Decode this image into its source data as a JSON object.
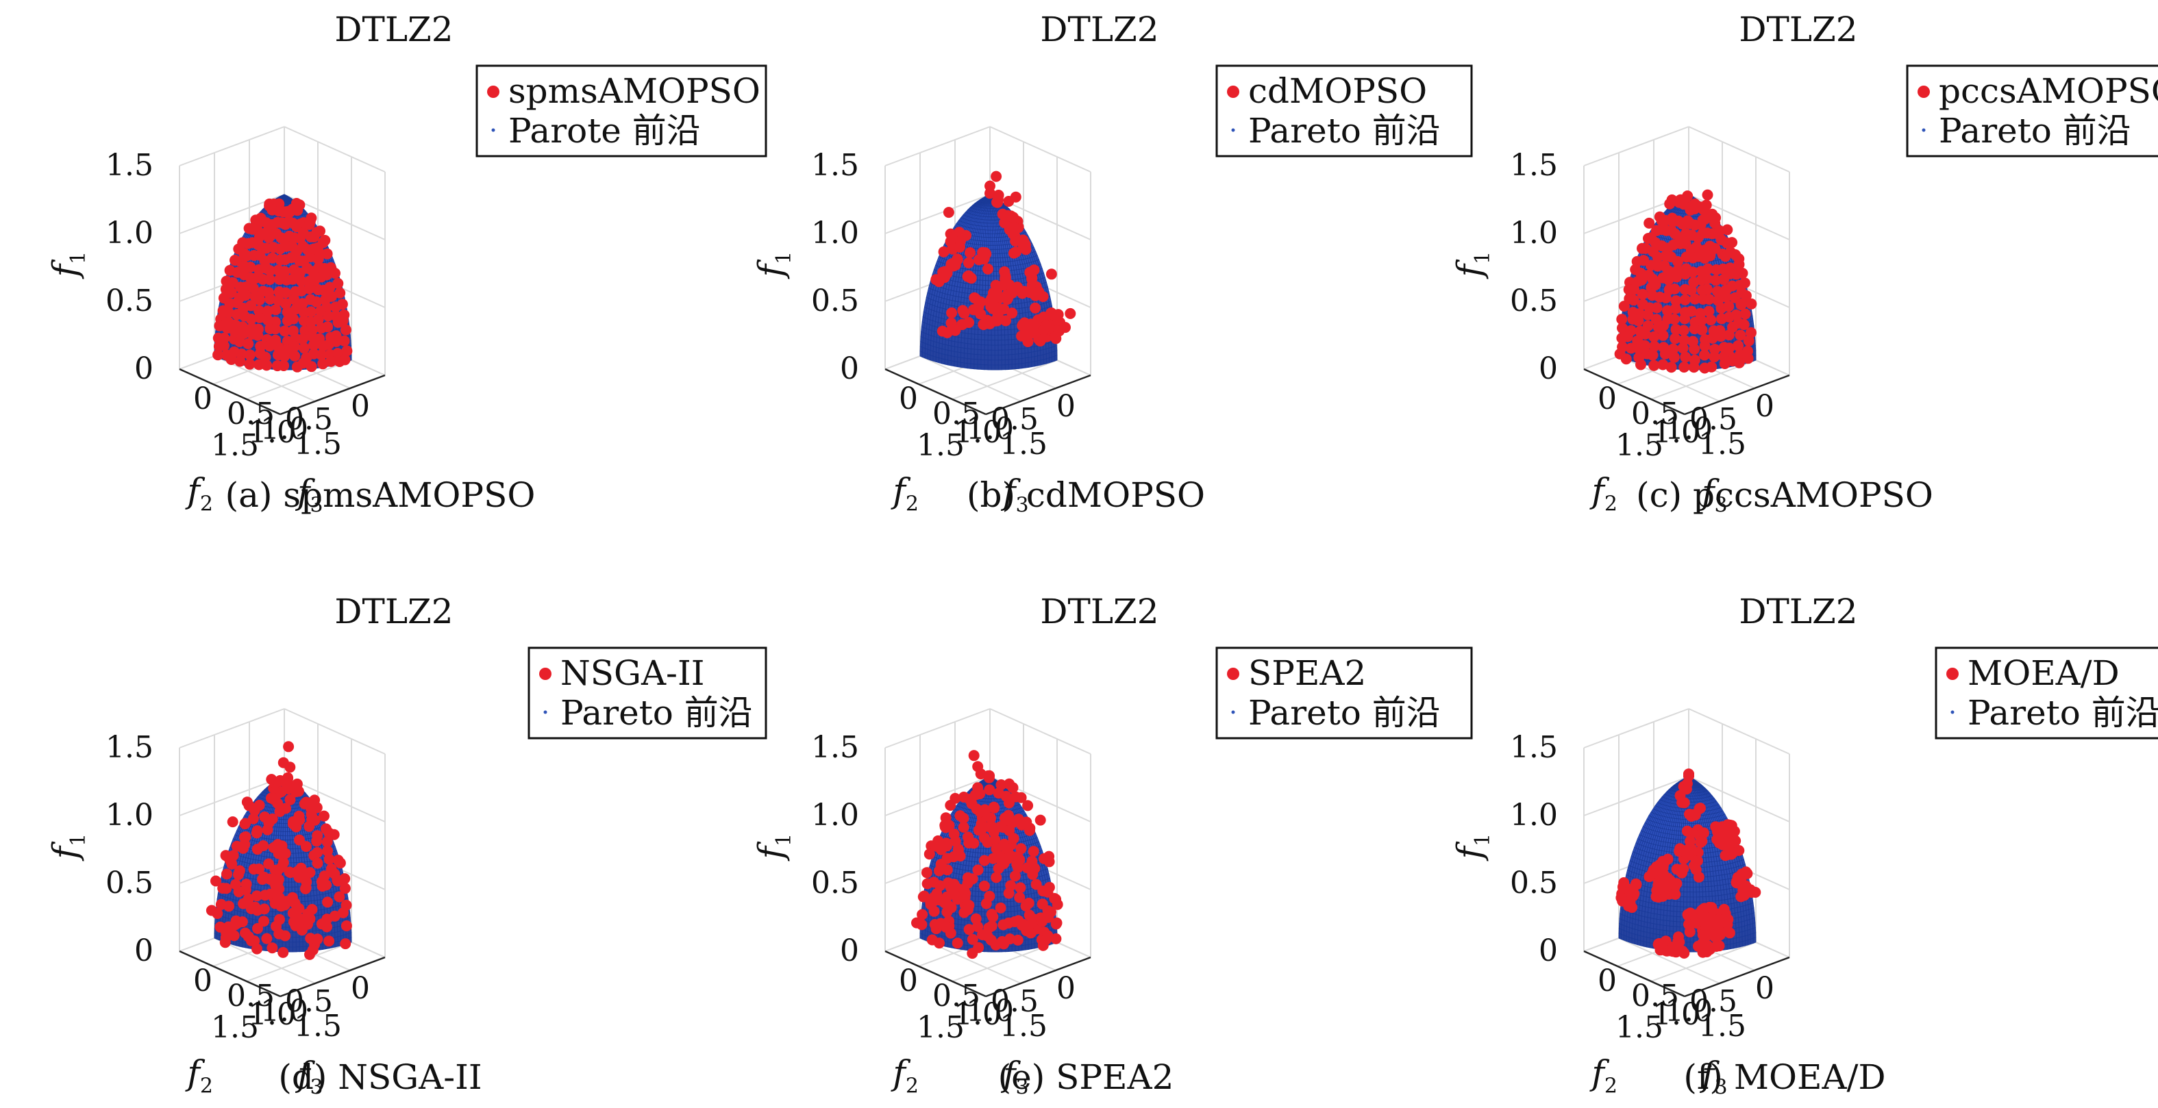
{
  "colors": {
    "front_surface": "#2f54b8",
    "front_line": "#1a3a99",
    "solution_points": "#e8202a",
    "grid": "#d9d9d9"
  },
  "chart_data": [
    {
      "type": "scatter",
      "panel": "a",
      "title": "DTLZ2",
      "caption": "(a) spmsAMOPSO",
      "xlabel": "f2",
      "ylabel": "f3",
      "zlabel": "f1",
      "xlim": [
        0,
        1.5
      ],
      "ylim": [
        0,
        1.5
      ],
      "zlim": [
        0,
        1.5
      ],
      "ticks": [
        0,
        0.5,
        1.0,
        1.5
      ],
      "tick_labels": [
        "0",
        "0.5",
        "1.0",
        "1.5"
      ],
      "grid": true,
      "legend_position": "top-right",
      "series": [
        {
          "name": "spmsAMOPSO",
          "marker": "filled-circle",
          "color": "#e8202a",
          "distribution": "uniform",
          "points": 260,
          "scatter_off_front": 0.0
        },
        {
          "name": "Parote 前沿",
          "marker": "dot",
          "color": "#2f54b8",
          "shape": "unit sphere octant f1²+f2²+f3²=1"
        }
      ]
    },
    {
      "type": "scatter",
      "panel": "b",
      "title": "DTLZ2",
      "caption": "(b) cdMOPSO",
      "xlabel": "f2",
      "ylabel": "f3",
      "zlabel": "f1",
      "xlim": [
        0,
        1.5
      ],
      "ylim": [
        0,
        1.5
      ],
      "zlim": [
        0,
        1.5
      ],
      "ticks": [
        0,
        0.5,
        1.0,
        1.5
      ],
      "tick_labels": [
        "0",
        "0.5",
        "1.0",
        "1.5"
      ],
      "grid": true,
      "legend_position": "top-right",
      "series": [
        {
          "name": "cdMOPSO",
          "marker": "filled-circle",
          "color": "#e8202a",
          "distribution": "clustered",
          "points": 210,
          "scatter_off_front": 0.08
        },
        {
          "name": "Pareto 前沿",
          "marker": "dot",
          "color": "#2f54b8",
          "shape": "unit sphere octant f1²+f2²+f3²=1"
        }
      ]
    },
    {
      "type": "scatter",
      "panel": "c",
      "title": "DTLZ2",
      "caption": "(c) pccsAMOPSO",
      "xlabel": "f2",
      "ylabel": "f3",
      "zlabel": "f1",
      "xlim": [
        0,
        1.5
      ],
      "ylim": [
        0,
        1.5
      ],
      "zlim": [
        0,
        1.5
      ],
      "ticks": [
        0,
        0.5,
        1.0,
        1.5
      ],
      "tick_labels": [
        "0",
        "0.5",
        "1.0",
        "1.5"
      ],
      "grid": true,
      "legend_position": "top-right",
      "series": [
        {
          "name": "pccsAMOPSO",
          "marker": "filled-circle",
          "color": "#e8202a",
          "distribution": "uniform",
          "points": 250,
          "scatter_off_front": 0.03
        },
        {
          "name": "Pareto 前沿",
          "marker": "dot",
          "color": "#2f54b8",
          "shape": "unit sphere octant f1²+f2²+f3²=1"
        }
      ]
    },
    {
      "type": "scatter",
      "panel": "d",
      "title": "DTLZ2",
      "caption": "(d) NSGA-II",
      "xlabel": "f2",
      "ylabel": "f3",
      "zlabel": "f1",
      "xlim": [
        0,
        1.5
      ],
      "ylim": [
        0,
        1.5
      ],
      "zlim": [
        0,
        1.5
      ],
      "ticks": [
        0,
        0.5,
        1.0,
        1.5
      ],
      "tick_labels": [
        "0",
        "0.5",
        "1.0",
        "1.5"
      ],
      "grid": true,
      "legend_position": "top-right",
      "series": [
        {
          "name": "NSGA-II",
          "marker": "filled-circle",
          "color": "#e8202a",
          "distribution": "random",
          "points": 210,
          "scatter_off_front": 0.08
        },
        {
          "name": "Pareto 前沿",
          "marker": "dot",
          "color": "#2f54b8",
          "shape": "unit sphere octant f1²+f2²+f3²=1"
        }
      ]
    },
    {
      "type": "scatter",
      "panel": "e",
      "title": "DTLZ2",
      "caption": "(e) SPEA2",
      "xlabel": "f2",
      "ylabel": "f3",
      "zlabel": "f1",
      "xlim": [
        0,
        1.5
      ],
      "ylim": [
        0,
        1.5
      ],
      "zlim": [
        0,
        1.5
      ],
      "ticks": [
        0,
        0.5,
        1.0,
        1.5
      ],
      "tick_labels": [
        "0",
        "0.5",
        "1.0",
        "1.5"
      ],
      "grid": true,
      "legend_position": "top-right",
      "series": [
        {
          "name": "SPEA2",
          "marker": "filled-circle",
          "color": "#e8202a",
          "distribution": "random",
          "points": 230,
          "scatter_off_front": 0.08
        },
        {
          "name": "Pareto 前沿",
          "marker": "dot",
          "color": "#2f54b8",
          "shape": "unit sphere octant f1²+f2²+f3²=1"
        }
      ]
    },
    {
      "type": "scatter",
      "panel": "f",
      "title": "DTLZ2",
      "caption": "(f) MOEA/D",
      "xlabel": "f2",
      "ylabel": "f3",
      "zlabel": "f1",
      "xlim": [
        0,
        1.5
      ],
      "ylim": [
        0,
        1.5
      ],
      "zlim": [
        0,
        1.5
      ],
      "ticks": [
        0,
        0.5,
        1.0,
        1.5
      ],
      "tick_labels": [
        "0",
        "0.5",
        "1.0",
        "1.5"
      ],
      "grid": true,
      "legend_position": "top-right",
      "series": [
        {
          "name": "MOEA/D",
          "marker": "filled-circle",
          "color": "#e8202a",
          "distribution": "clustered",
          "points": 270,
          "scatter_off_front": 0.02
        },
        {
          "name": "Pareto 前沿",
          "marker": "dot",
          "color": "#2f54b8",
          "shape": "unit sphere octant f1²+f2²+f3²=1"
        }
      ]
    }
  ]
}
